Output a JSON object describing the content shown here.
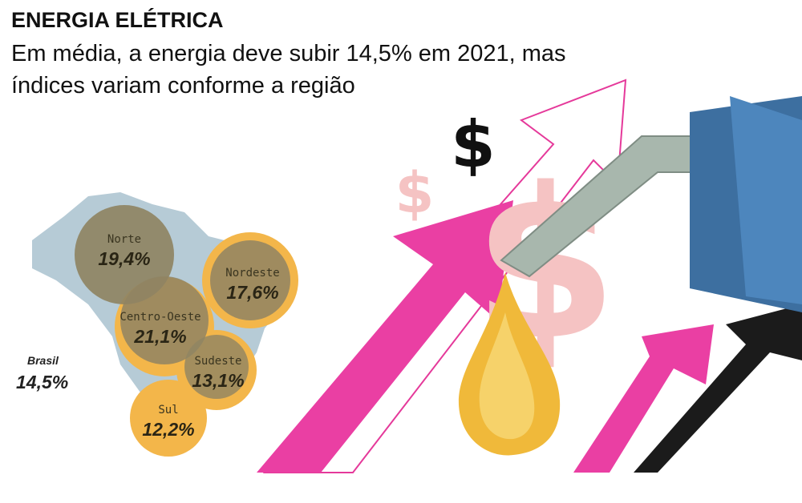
{
  "header": {
    "title": "ENERGIA ELÉTRICA",
    "subtitle": [
      "Em média, a energia deve subir 14,5% em 2021, mas",
      "índices variam conforme a região"
    ]
  },
  "national": {
    "name": "Brasil",
    "value": "14,5%"
  },
  "regions": [
    {
      "name": "Norte",
      "value": "19,4%"
    },
    {
      "name": "Nordeste",
      "value": "17,6%"
    },
    {
      "name": "Centro-Oeste",
      "value": "21,1%"
    },
    {
      "name": "Sudeste",
      "value": "13,1%"
    },
    {
      "name": "Sul",
      "value": "12,2%"
    }
  ]
}
